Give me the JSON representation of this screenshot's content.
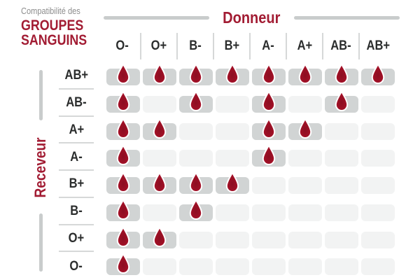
{
  "title": {
    "kicker": "Compatibilité des",
    "line1": "GROUPES",
    "line2": "SANGUINS"
  },
  "axes": {
    "donor_label": "Donneur",
    "receiver_label": "Receveur"
  },
  "colors": {
    "accent_red": "#a21c33",
    "drop_red": "#a01126",
    "filled_cell_gray": "#d1d4d4",
    "empty_cell_gray": "#f2f3f3",
    "divider_gray": "#c9cccc",
    "header_text": "#2b2d2d",
    "kicker_gray": "#8c8c8c"
  },
  "chart_data": {
    "type": "heatmap",
    "title": "Compatibilité des GROUPES SANGUINS",
    "x_axis": {
      "label": "Donneur",
      "categories": [
        "O-",
        "O+",
        "B-",
        "B+",
        "A-",
        "A+",
        "AB-",
        "AB+"
      ]
    },
    "y_axis": {
      "label": "Receveur",
      "categories": [
        "AB+",
        "AB-",
        "A+",
        "A-",
        "B+",
        "B-",
        "O+",
        "O-"
      ]
    },
    "matrix": [
      [
        1,
        1,
        1,
        1,
        1,
        1,
        1,
        1
      ],
      [
        1,
        0,
        1,
        0,
        1,
        0,
        1,
        0
      ],
      [
        1,
        1,
        0,
        0,
        1,
        1,
        0,
        0
      ],
      [
        1,
        0,
        0,
        0,
        1,
        0,
        0,
        0
      ],
      [
        1,
        1,
        1,
        1,
        0,
        0,
        0,
        0
      ],
      [
        1,
        0,
        1,
        0,
        0,
        0,
        0,
        0
      ],
      [
        1,
        1,
        0,
        0,
        0,
        0,
        0,
        0
      ],
      [
        1,
        0,
        0,
        0,
        0,
        0,
        0,
        0
      ]
    ],
    "marker_icon": "blood-drop-icon",
    "cell_meaning": "1 = compatible (blood drop on gray cell), 0 = not compatible (empty pale cell)",
    "legend_position": "none",
    "grid": "off"
  }
}
